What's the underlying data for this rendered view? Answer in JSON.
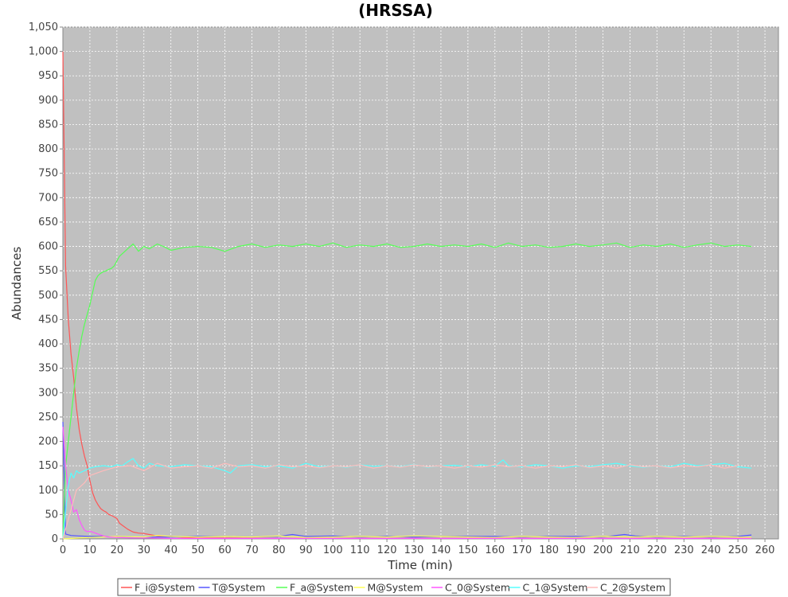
{
  "chart_data": {
    "type": "line",
    "title": "(HRSSA)",
    "xlabel": "Time (min)",
    "ylabel": "Abundances",
    "xlim": [
      0,
      265
    ],
    "ylim": [
      0,
      1050
    ],
    "x_ticks": [
      0,
      10,
      20,
      30,
      40,
      50,
      60,
      70,
      80,
      90,
      100,
      110,
      120,
      130,
      140,
      150,
      160,
      170,
      180,
      190,
      200,
      210,
      220,
      230,
      240,
      250,
      260
    ],
    "y_ticks": [
      0,
      50,
      100,
      150,
      200,
      250,
      300,
      350,
      400,
      450,
      500,
      550,
      600,
      650,
      700,
      750,
      800,
      850,
      900,
      950,
      1000,
      1050
    ],
    "y_tick_labels": [
      "0",
      "50",
      "100",
      "150",
      "200",
      "250",
      "300",
      "350",
      "400",
      "450",
      "500",
      "550",
      "600",
      "650",
      "700",
      "750",
      "800",
      "850",
      "900",
      "950",
      "1,000",
      "1,050"
    ],
    "grid": true,
    "legend_position": "bottom",
    "series": [
      {
        "name": "F_i@System",
        "color": "#ff5555",
        "points": [
          [
            0,
            1000
          ],
          [
            1,
            560
          ],
          [
            2,
            450
          ],
          [
            3,
            380
          ],
          [
            4,
            330
          ],
          [
            5,
            270
          ],
          [
            6,
            225
          ],
          [
            7,
            195
          ],
          [
            8,
            170
          ],
          [
            9,
            150
          ],
          [
            10,
            120
          ],
          [
            11,
            95
          ],
          [
            12,
            80
          ],
          [
            13,
            70
          ],
          [
            14,
            62
          ],
          [
            15,
            58
          ],
          [
            16,
            55
          ],
          [
            17,
            50
          ],
          [
            18,
            48
          ],
          [
            19,
            45
          ],
          [
            20,
            42
          ],
          [
            21,
            32
          ],
          [
            22,
            28
          ],
          [
            24,
            20
          ],
          [
            26,
            14
          ],
          [
            28,
            12
          ],
          [
            30,
            11
          ],
          [
            32,
            9
          ],
          [
            35,
            6
          ],
          [
            40,
            5
          ],
          [
            45,
            3
          ],
          [
            50,
            2
          ],
          [
            60,
            2
          ],
          [
            80,
            1
          ],
          [
            100,
            1
          ],
          [
            150,
            1
          ],
          [
            200,
            1
          ],
          [
            255,
            1
          ]
        ]
      },
      {
        "name": "T@System",
        "color": "#5555ff",
        "points": [
          [
            0,
            240
          ],
          [
            1,
            10
          ],
          [
            3,
            7
          ],
          [
            6,
            6
          ],
          [
            10,
            5
          ],
          [
            15,
            5
          ],
          [
            20,
            4
          ],
          [
            30,
            4
          ],
          [
            40,
            4
          ],
          [
            50,
            5
          ],
          [
            60,
            5
          ],
          [
            70,
            4
          ],
          [
            80,
            5
          ],
          [
            85,
            9
          ],
          [
            90,
            5
          ],
          [
            100,
            6
          ],
          [
            110,
            4
          ],
          [
            120,
            5
          ],
          [
            130,
            4
          ],
          [
            140,
            5
          ],
          [
            150,
            5
          ],
          [
            160,
            5
          ],
          [
            170,
            4
          ],
          [
            180,
            5
          ],
          [
            190,
            5
          ],
          [
            200,
            4
          ],
          [
            208,
            9
          ],
          [
            212,
            6
          ],
          [
            220,
            4
          ],
          [
            230,
            5
          ],
          [
            240,
            4
          ],
          [
            250,
            5
          ],
          [
            255,
            8
          ]
        ]
      },
      {
        "name": "F_a@System",
        "color": "#55ff55",
        "points": [
          [
            0,
            0
          ],
          [
            1,
            150
          ],
          [
            2,
            200
          ],
          [
            3,
            250
          ],
          [
            4,
            300
          ],
          [
            5,
            350
          ],
          [
            6,
            385
          ],
          [
            7,
            415
          ],
          [
            8,
            440
          ],
          [
            9,
            460
          ],
          [
            10,
            480
          ],
          [
            11,
            505
          ],
          [
            12,
            530
          ],
          [
            13,
            540
          ],
          [
            14,
            545
          ],
          [
            15,
            548
          ],
          [
            16,
            550
          ],
          [
            17,
            553
          ],
          [
            18,
            555
          ],
          [
            19,
            560
          ],
          [
            20,
            570
          ],
          [
            21,
            580
          ],
          [
            22,
            585
          ],
          [
            23,
            590
          ],
          [
            24,
            595
          ],
          [
            26,
            605
          ],
          [
            28,
            590
          ],
          [
            30,
            600
          ],
          [
            32,
            595
          ],
          [
            35,
            605
          ],
          [
            38,
            598
          ],
          [
            40,
            592
          ],
          [
            45,
            598
          ],
          [
            50,
            600
          ],
          [
            55,
            598
          ],
          [
            60,
            590
          ],
          [
            65,
            600
          ],
          [
            70,
            605
          ],
          [
            75,
            598
          ],
          [
            80,
            603
          ],
          [
            85,
            600
          ],
          [
            90,
            605
          ],
          [
            95,
            600
          ],
          [
            100,
            607
          ],
          [
            105,
            598
          ],
          [
            110,
            603
          ],
          [
            115,
            600
          ],
          [
            120,
            605
          ],
          [
            125,
            598
          ],
          [
            130,
            600
          ],
          [
            135,
            605
          ],
          [
            140,
            600
          ],
          [
            145,
            603
          ],
          [
            150,
            600
          ],
          [
            155,
            605
          ],
          [
            160,
            598
          ],
          [
            165,
            607
          ],
          [
            170,
            600
          ],
          [
            175,
            603
          ],
          [
            180,
            598
          ],
          [
            185,
            600
          ],
          [
            190,
            605
          ],
          [
            195,
            600
          ],
          [
            200,
            603
          ],
          [
            205,
            607
          ],
          [
            210,
            598
          ],
          [
            215,
            603
          ],
          [
            220,
            600
          ],
          [
            225,
            605
          ],
          [
            230,
            598
          ],
          [
            235,
            603
          ],
          [
            240,
            607
          ],
          [
            245,
            600
          ],
          [
            250,
            603
          ],
          [
            255,
            600
          ]
        ]
      },
      {
        "name": "M@System",
        "color": "#ffff55",
        "points": [
          [
            0,
            0
          ],
          [
            10,
            3
          ],
          [
            20,
            5
          ],
          [
            30,
            4
          ],
          [
            35,
            7
          ],
          [
            40,
            5
          ],
          [
            50,
            4
          ],
          [
            60,
            5
          ],
          [
            70,
            4
          ],
          [
            80,
            6
          ],
          [
            90,
            3
          ],
          [
            100,
            4
          ],
          [
            110,
            5
          ],
          [
            120,
            4
          ],
          [
            130,
            6
          ],
          [
            140,
            5
          ],
          [
            150,
            4
          ],
          [
            160,
            3
          ],
          [
            170,
            5
          ],
          [
            180,
            4
          ],
          [
            190,
            3
          ],
          [
            200,
            5
          ],
          [
            210,
            4
          ],
          [
            220,
            5
          ],
          [
            230,
            4
          ],
          [
            240,
            5
          ],
          [
            250,
            4
          ],
          [
            255,
            3
          ]
        ]
      },
      {
        "name": "C_0@System",
        "color": "#ff55ff",
        "points": [
          [
            0,
            230
          ],
          [
            1,
            150
          ],
          [
            2,
            100
          ],
          [
            3,
            80
          ],
          [
            4,
            55
          ],
          [
            5,
            60
          ],
          [
            6,
            40
          ],
          [
            7,
            28
          ],
          [
            8,
            18
          ],
          [
            9,
            15
          ],
          [
            10,
            16
          ],
          [
            11,
            14
          ],
          [
            12,
            12
          ],
          [
            13,
            10
          ],
          [
            14,
            8
          ],
          [
            15,
            6
          ],
          [
            17,
            4
          ],
          [
            20,
            3
          ],
          [
            25,
            2
          ],
          [
            30,
            2
          ],
          [
            40,
            1
          ],
          [
            60,
            1
          ],
          [
            100,
            1
          ],
          [
            150,
            1
          ],
          [
            200,
            1
          ],
          [
            255,
            1
          ]
        ]
      },
      {
        "name": "C_1@System",
        "color": "#55ffff",
        "points": [
          [
            0,
            0
          ],
          [
            2,
            110
          ],
          [
            3,
            135
          ],
          [
            4,
            125
          ],
          [
            5,
            140
          ],
          [
            6,
            135
          ],
          [
            8,
            140
          ],
          [
            10,
            145
          ],
          [
            12,
            148
          ],
          [
            15,
            150
          ],
          [
            18,
            148
          ],
          [
            20,
            152
          ],
          [
            22,
            150
          ],
          [
            24,
            158
          ],
          [
            26,
            165
          ],
          [
            28,
            150
          ],
          [
            30,
            145
          ],
          [
            32,
            155
          ],
          [
            35,
            150
          ],
          [
            40,
            148
          ],
          [
            45,
            152
          ],
          [
            50,
            150
          ],
          [
            55,
            148
          ],
          [
            60,
            140
          ],
          [
            62,
            135
          ],
          [
            65,
            150
          ],
          [
            70,
            152
          ],
          [
            75,
            148
          ],
          [
            80,
            150
          ],
          [
            85,
            145
          ],
          [
            90,
            155
          ],
          [
            95,
            148
          ],
          [
            100,
            150
          ],
          [
            105,
            147
          ],
          [
            110,
            152
          ],
          [
            115,
            149
          ],
          [
            120,
            150
          ],
          [
            125,
            148
          ],
          [
            130,
            153
          ],
          [
            135,
            147
          ],
          [
            140,
            150
          ],
          [
            145,
            151
          ],
          [
            150,
            148
          ],
          [
            155,
            152
          ],
          [
            160,
            149
          ],
          [
            163,
            162
          ],
          [
            165,
            150
          ],
          [
            170,
            148
          ],
          [
            175,
            152
          ],
          [
            180,
            150
          ],
          [
            185,
            145
          ],
          [
            190,
            150
          ],
          [
            195,
            148
          ],
          [
            200,
            152
          ],
          [
            205,
            155
          ],
          [
            210,
            150
          ],
          [
            215,
            147
          ],
          [
            220,
            150
          ],
          [
            225,
            148
          ],
          [
            230,
            155
          ],
          [
            235,
            150
          ],
          [
            240,
            152
          ],
          [
            245,
            155
          ],
          [
            250,
            148
          ],
          [
            255,
            145
          ]
        ]
      },
      {
        "name": "C_2@System",
        "color": "#ffbbbb",
        "points": [
          [
            0,
            0
          ],
          [
            5,
            100
          ],
          [
            8,
            115
          ],
          [
            10,
            130
          ],
          [
            15,
            140
          ],
          [
            20,
            148
          ],
          [
            25,
            150
          ],
          [
            30,
            140
          ],
          [
            35,
            155
          ],
          [
            40,
            145
          ],
          [
            45,
            148
          ],
          [
            50,
            150
          ],
          [
            55,
            145
          ],
          [
            60,
            155
          ],
          [
            65,
            148
          ],
          [
            70,
            150
          ],
          [
            75,
            145
          ],
          [
            80,
            152
          ],
          [
            85,
            148
          ],
          [
            90,
            150
          ],
          [
            95,
            146
          ],
          [
            100,
            150
          ],
          [
            105,
            148
          ],
          [
            110,
            152
          ],
          [
            115,
            145
          ],
          [
            120,
            150
          ],
          [
            125,
            147
          ],
          [
            130,
            152
          ],
          [
            135,
            148
          ],
          [
            140,
            150
          ],
          [
            145,
            145
          ],
          [
            150,
            150
          ],
          [
            155,
            147
          ],
          [
            160,
            152
          ],
          [
            165,
            148
          ],
          [
            170,
            150
          ],
          [
            175,
            145
          ],
          [
            180,
            150
          ],
          [
            185,
            148
          ],
          [
            190,
            152
          ],
          [
            195,
            146
          ],
          [
            200,
            150
          ],
          [
            205,
            145
          ],
          [
            210,
            152
          ],
          [
            215,
            148
          ],
          [
            220,
            150
          ],
          [
            225,
            146
          ],
          [
            230,
            150
          ],
          [
            235,
            148
          ],
          [
            240,
            152
          ],
          [
            245,
            145
          ],
          [
            250,
            150
          ]
        ]
      }
    ]
  }
}
